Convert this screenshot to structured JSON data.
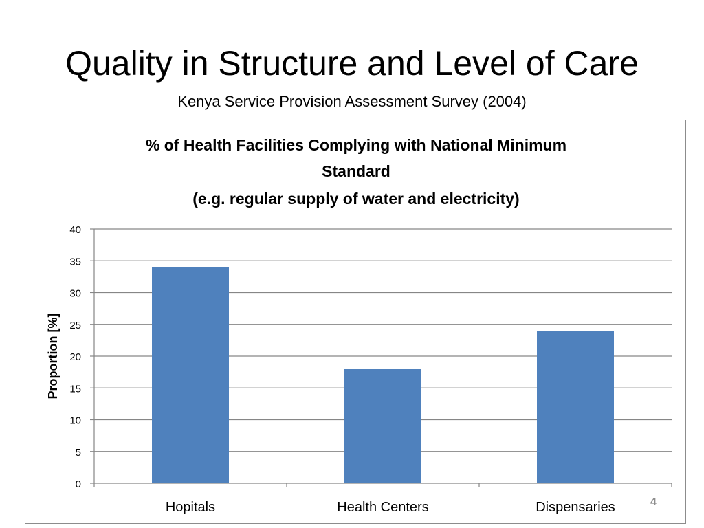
{
  "slide": {
    "title": "Quality in Structure and Level of Care",
    "subtitle": "Kenya Service Provision Assessment Survey (2004)",
    "page_number": "4"
  },
  "chart_data": {
    "type": "bar",
    "title_lines": [
      "% of Health Facilities Complying with National Minimum",
      "Standard",
      "(e.g. regular supply of water and electricity)"
    ],
    "categories": [
      "Hopitals",
      "Health Centers",
      "Dispensaries"
    ],
    "values": [
      34,
      18,
      24
    ],
    "xlabel": "",
    "ylabel": "Proportion [%]",
    "ylim": [
      0,
      40
    ],
    "yticks": [
      0,
      5,
      10,
      15,
      20,
      25,
      30,
      35,
      40
    ],
    "grid": true,
    "legend": "none",
    "colors": {
      "bar": "#4f81bd",
      "grid": "#868686",
      "axis": "#868686"
    }
  }
}
